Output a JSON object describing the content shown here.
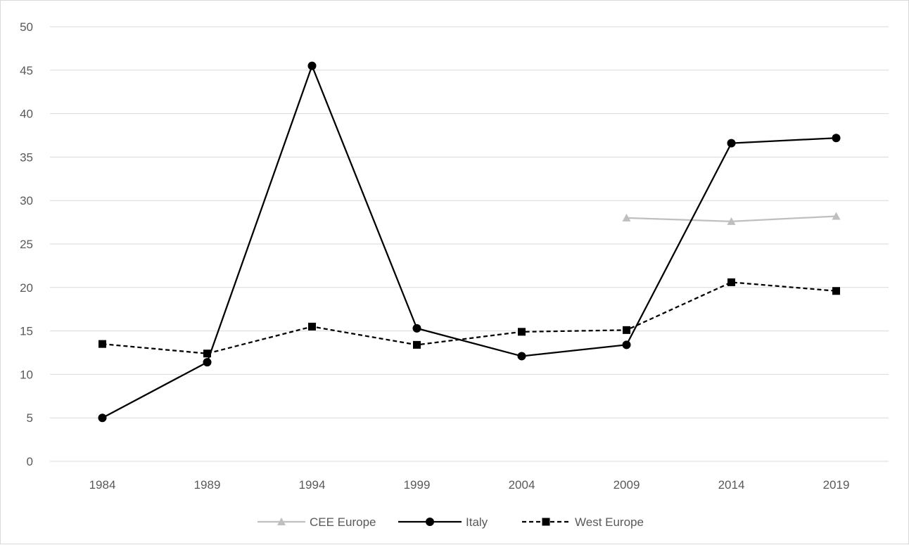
{
  "chart_data": {
    "type": "line",
    "categories": [
      "1984",
      "1989",
      "1994",
      "1999",
      "2004",
      "2009",
      "2014",
      "2019"
    ],
    "ylim": [
      0,
      50
    ],
    "yticks": [
      0,
      5,
      10,
      15,
      20,
      25,
      30,
      35,
      40,
      45,
      50
    ],
    "grid": true,
    "legend_position": "bottom",
    "title": "",
    "xlabel": "",
    "ylabel": "",
    "series": [
      {
        "name": "CEE Europe",
        "values": [
          null,
          null,
          null,
          null,
          null,
          28.0,
          27.6,
          28.2
        ],
        "color": "#bfbfbf",
        "marker": "triangle",
        "dash": "solid"
      },
      {
        "name": "Italy",
        "values": [
          5.0,
          11.4,
          45.5,
          15.3,
          12.1,
          13.4,
          36.6,
          37.2
        ],
        "color": "#000000",
        "marker": "circle",
        "dash": "solid"
      },
      {
        "name": "West Europe",
        "values": [
          13.5,
          12.4,
          15.5,
          13.4,
          14.9,
          15.1,
          20.6,
          19.6
        ],
        "color": "#000000",
        "marker": "square",
        "dash": "dashed"
      }
    ]
  }
}
